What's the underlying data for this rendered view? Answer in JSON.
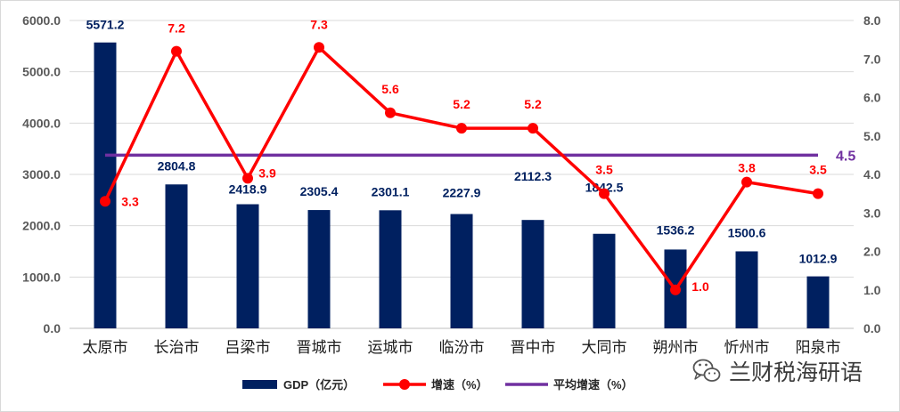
{
  "chart_data": {
    "type": "bar",
    "categories": [
      "太原市",
      "长治市",
      "吕梁市",
      "晋城市",
      "运城市",
      "临汾市",
      "晋中市",
      "大同市",
      "朔州市",
      "忻州市",
      "阳泉市"
    ],
    "series": [
      {
        "name": "GDP（亿元）",
        "type": "bar",
        "axis": "left",
        "color": "#002060",
        "values": [
          5571.2,
          2804.8,
          2418.9,
          2305.4,
          2301.1,
          2227.9,
          2112.3,
          1842.5,
          1536.2,
          1500.6,
          1012.9
        ],
        "labels": [
          "5571.2",
          "2804.8",
          "2418.9",
          "2305.4",
          "2301.1",
          "2227.9",
          "2112.3",
          "1842.5",
          "1536.2",
          "1500.6",
          "1012.9"
        ]
      },
      {
        "name": "增速（%）",
        "type": "line",
        "axis": "right",
        "color": "#ff0000",
        "values": [
          3.3,
          7.2,
          3.9,
          7.3,
          5.6,
          5.2,
          5.2,
          3.5,
          1.0,
          3.8,
          3.5
        ],
        "labels": [
          "3.3",
          "7.2",
          "3.9",
          "7.3",
          "5.6",
          "5.2",
          "5.2",
          "3.5",
          "1.0",
          "3.8",
          "3.5"
        ]
      },
      {
        "name": "平均增速（%）",
        "type": "line",
        "axis": "right",
        "color": "#7030a0",
        "value": 4.5,
        "label": "4.5"
      }
    ],
    "y_left": {
      "range": [
        0,
        6000
      ],
      "ticks": [
        "0.0",
        "1000.0",
        "2000.0",
        "3000.0",
        "4000.0",
        "5000.0",
        "6000.0"
      ]
    },
    "y_right": {
      "range": [
        0,
        8
      ],
      "ticks": [
        "0.0",
        "1.0",
        "2.0",
        "3.0",
        "4.0",
        "5.0",
        "6.0",
        "7.0",
        "8.0"
      ]
    },
    "grid": true,
    "legend": "bottom"
  },
  "watermark": {
    "text": "兰财税海研语",
    "icon": "wechat-icon"
  }
}
